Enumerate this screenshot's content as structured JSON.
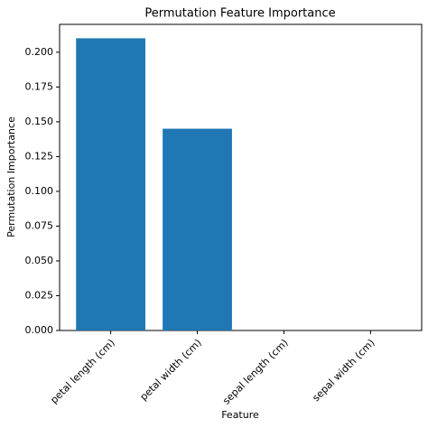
{
  "chart_data": {
    "type": "bar",
    "title": "Permutation Feature Importance",
    "x_label": "Feature",
    "y_label": "Permutation Importance",
    "categories": [
      "petal length (cm)",
      "petal width (cm)",
      "sepal length (cm)",
      "sepal width (cm)"
    ],
    "values": [
      0.21,
      0.145,
      0,
      0
    ],
    "color": "#1f77b4",
    "ylim": [
      0,
      0.22
    ],
    "yticks": [
      {
        "value": 0,
        "label": "0.000"
      },
      {
        "value": 0.025,
        "label": "0.025"
      },
      {
        "value": 0.05,
        "label": "0.050"
      },
      {
        "value": 0.075,
        "label": "0.075"
      },
      {
        "value": 0.1,
        "label": "0.100"
      },
      {
        "value": 0.125,
        "label": "0.125"
      },
      {
        "value": 0.15,
        "label": "0.150"
      },
      {
        "value": 0.175,
        "label": "0.175"
      },
      {
        "value": 0.2,
        "label": "0.200"
      }
    ],
    "grid": false
  }
}
